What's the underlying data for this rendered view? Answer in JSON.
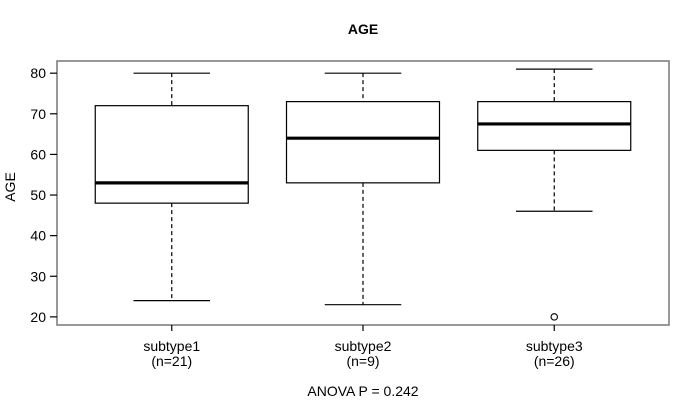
{
  "chart_data": {
    "type": "boxplot",
    "title": "AGE",
    "ylabel": "AGE",
    "footer": "ANOVA P = 0.242",
    "ylim": [
      18,
      83
    ],
    "yticks": [
      20,
      30,
      40,
      50,
      60,
      70,
      80
    ],
    "grid": false,
    "legend": "none",
    "colors": {
      "frame": "#777777",
      "box_stroke": "#000000",
      "box_fill": "#ffffff",
      "median": "#000000",
      "whisker": "#000000",
      "text": "#000000"
    },
    "groups": [
      {
        "label": "subtype1",
        "sublabel": "(n=21)",
        "whisker_low": 24,
        "q1": 48,
        "median": 53,
        "q3": 72,
        "whisker_high": 80,
        "outliers": []
      },
      {
        "label": "subtype2",
        "sublabel": "(n=9)",
        "whisker_low": 23,
        "q1": 53,
        "median": 64,
        "q3": 73,
        "whisker_high": 80,
        "outliers": []
      },
      {
        "label": "subtype3",
        "sublabel": "(n=26)",
        "whisker_low": 46,
        "q1": 61,
        "median": 67.5,
        "q3": 73,
        "whisker_high": 81,
        "outliers": [
          20
        ]
      }
    ]
  }
}
